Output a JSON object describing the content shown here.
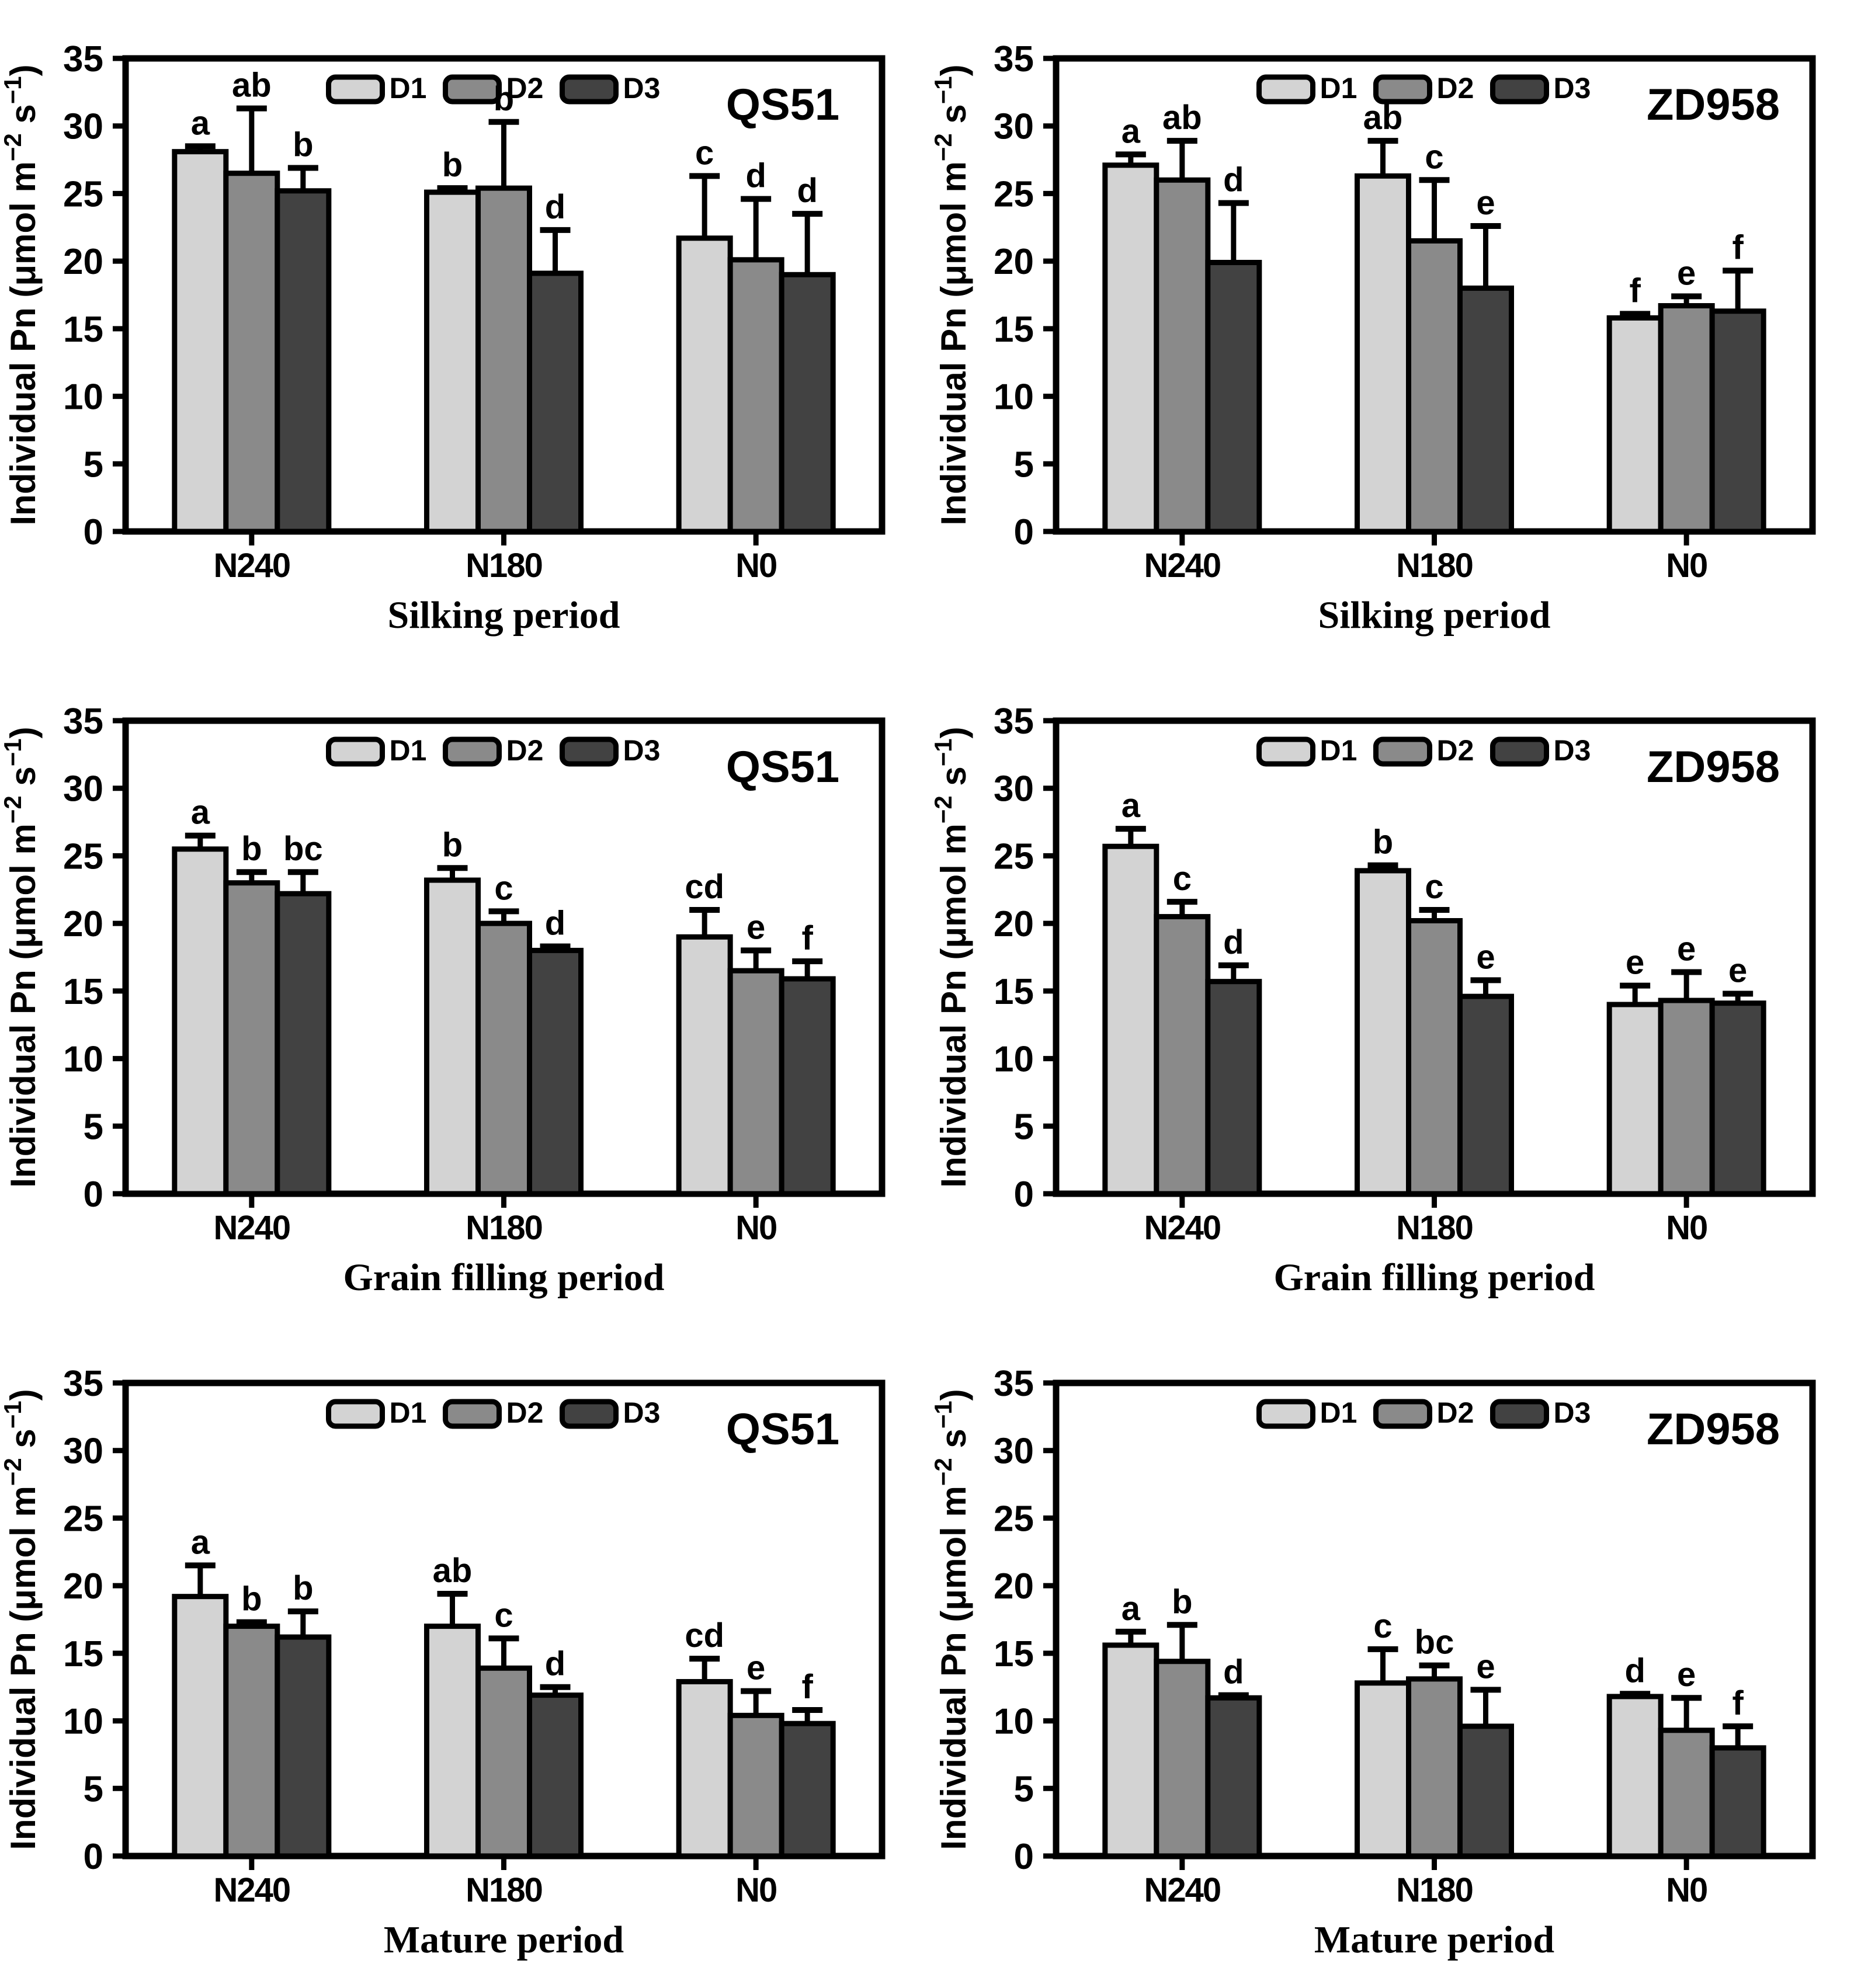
{
  "figure": {
    "ylabel": {
      "prefix": "Individual Pn (μmol m",
      "sup1": "−2",
      "mid": " s",
      "sup2": "−1",
      "suffix": ")"
    },
    "colors": {
      "D1": "#d3d3d3",
      "D2": "#8a8a8a",
      "D3": "#424242",
      "axis": "#000000"
    },
    "legend_position": "top"
  },
  "chart_data": [
    {
      "type": "bar",
      "cultivar": "QS51",
      "xlabel": "Silking period",
      "ylim": [
        0,
        35
      ],
      "ytick_step": 5,
      "grid": false,
      "categories": [
        "N240",
        "N180",
        "N0"
      ],
      "series": [
        {
          "name": "D1",
          "values": [
            28.1,
            25.1,
            21.7
          ],
          "errors": [
            0.4,
            0.3,
            4.6
          ],
          "letters": [
            "a",
            "b",
            "c"
          ]
        },
        {
          "name": "D2",
          "values": [
            26.5,
            25.4,
            20.1
          ],
          "errors": [
            4.8,
            4.9,
            4.5
          ],
          "letters": [
            "ab",
            "b",
            "d"
          ]
        },
        {
          "name": "D3",
          "values": [
            25.2,
            19.1,
            19.0
          ],
          "errors": [
            1.7,
            3.2,
            4.5
          ],
          "letters": [
            "b",
            "d",
            "d"
          ]
        }
      ]
    },
    {
      "type": "bar",
      "cultivar": "ZD958",
      "xlabel": "Silking period",
      "ylim": [
        0,
        35
      ],
      "ytick_step": 5,
      "grid": false,
      "categories": [
        "N240",
        "N180",
        "N0"
      ],
      "series": [
        {
          "name": "D1",
          "values": [
            27.1,
            26.3,
            15.8
          ],
          "errors": [
            0.8,
            2.6,
            0.3
          ],
          "letters": [
            "a",
            "ab",
            "f"
          ]
        },
        {
          "name": "D2",
          "values": [
            26.0,
            21.5,
            16.7
          ],
          "errors": [
            2.9,
            4.5,
            0.7
          ],
          "letters": [
            "ab",
            "c",
            "e"
          ]
        },
        {
          "name": "D3",
          "values": [
            19.9,
            18.0,
            16.3
          ],
          "errors": [
            4.4,
            4.6,
            3.0
          ],
          "letters": [
            "d",
            "e",
            "f"
          ]
        }
      ]
    },
    {
      "type": "bar",
      "cultivar": "QS51",
      "xlabel": "Grain filling period",
      "ylim": [
        0,
        35
      ],
      "ytick_step": 5,
      "grid": false,
      "categories": [
        "N240",
        "N180",
        "N0"
      ],
      "series": [
        {
          "name": "D1",
          "values": [
            25.5,
            23.2,
            19.0
          ],
          "errors": [
            1.0,
            0.9,
            2.0
          ],
          "letters": [
            "a",
            "b",
            "cd"
          ]
        },
        {
          "name": "D2",
          "values": [
            23.0,
            20.0,
            16.5
          ],
          "errors": [
            0.8,
            0.9,
            1.5
          ],
          "letters": [
            "b",
            "c",
            "e"
          ]
        },
        {
          "name": "D3",
          "values": [
            22.2,
            18.0,
            15.9
          ],
          "errors": [
            1.6,
            0.3,
            1.3
          ],
          "letters": [
            "bc",
            "d",
            "f"
          ]
        }
      ]
    },
    {
      "type": "bar",
      "cultivar": "ZD958",
      "xlabel": "Grain filling period",
      "ylim": [
        0,
        35
      ],
      "ytick_step": 5,
      "grid": false,
      "categories": [
        "N240",
        "N180",
        "N0"
      ],
      "series": [
        {
          "name": "D1",
          "values": [
            25.7,
            23.9,
            14.0
          ],
          "errors": [
            1.3,
            0.4,
            1.4
          ],
          "letters": [
            "a",
            "b",
            "e"
          ]
        },
        {
          "name": "D2",
          "values": [
            20.5,
            20.2,
            14.3
          ],
          "errors": [
            1.1,
            0.8,
            2.1
          ],
          "letters": [
            "c",
            "c",
            "e"
          ]
        },
        {
          "name": "D3",
          "values": [
            15.7,
            14.6,
            14.1
          ],
          "errors": [
            1.2,
            1.2,
            0.7
          ],
          "letters": [
            "d",
            "e",
            "e"
          ]
        }
      ]
    },
    {
      "type": "bar",
      "cultivar": "QS51",
      "xlabel": "Mature period",
      "ylim": [
        0,
        35
      ],
      "ytick_step": 5,
      "grid": false,
      "categories": [
        "N240",
        "N180",
        "N0"
      ],
      "series": [
        {
          "name": "D1",
          "values": [
            19.2,
            17.0,
            12.9
          ],
          "errors": [
            2.3,
            2.4,
            1.7
          ],
          "letters": [
            "a",
            "ab",
            "cd"
          ]
        },
        {
          "name": "D2",
          "values": [
            17.0,
            13.9,
            10.4
          ],
          "errors": [
            0.3,
            2.2,
            1.8
          ],
          "letters": [
            "b",
            "c",
            "e"
          ]
        },
        {
          "name": "D3",
          "values": [
            16.2,
            11.9,
            9.8
          ],
          "errors": [
            1.9,
            0.6,
            1.0
          ],
          "letters": [
            "b",
            "d",
            "f"
          ]
        }
      ]
    },
    {
      "type": "bar",
      "cultivar": "ZD958",
      "xlabel": "Mature period",
      "ylim": [
        0,
        35
      ],
      "ytick_step": 5,
      "grid": false,
      "categories": [
        "N240",
        "N180",
        "N0"
      ],
      "series": [
        {
          "name": "D1",
          "values": [
            15.6,
            12.8,
            11.8
          ],
          "errors": [
            1.0,
            2.5,
            0.2
          ],
          "letters": [
            "a",
            "c",
            "d"
          ]
        },
        {
          "name": "D2",
          "values": [
            14.4,
            13.1,
            9.3
          ],
          "errors": [
            2.7,
            1.0,
            2.4
          ],
          "letters": [
            "b",
            "bc",
            "e"
          ]
        },
        {
          "name": "D3",
          "values": [
            11.7,
            9.6,
            8.0
          ],
          "errors": [
            0.2,
            2.7,
            1.6
          ],
          "letters": [
            "d",
            "e",
            "f"
          ]
        }
      ]
    }
  ]
}
